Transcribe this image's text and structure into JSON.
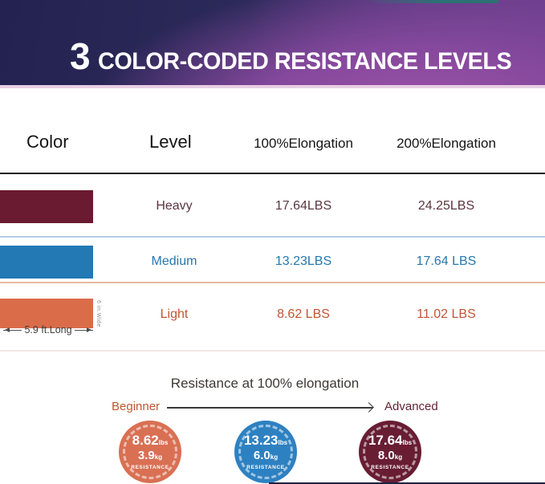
{
  "banner": {
    "number": "3",
    "title": "COLOR-CODED RESISTANCE LEVELS",
    "background_colors": [
      "#232250",
      "#5e3a83",
      "#a055a8"
    ],
    "underline_color": "#e8cfe4",
    "accent_sliver_color": "#2c7173"
  },
  "table": {
    "headers": {
      "color": "Color",
      "level": "Level",
      "e100": "100%Elongation",
      "e200": "200%Elongation"
    },
    "rows": [
      {
        "level": "Heavy",
        "e100": "17.64LBS",
        "e200": "24.25LBS",
        "bar_color": "#6A1B31",
        "text_color": "#5a3640"
      },
      {
        "level": "Medium",
        "e100": "13.23LBS",
        "e200": "17.64 LBS",
        "bar_color": "#2379B4",
        "text_color": "#2478AE"
      },
      {
        "level": "Light",
        "e100": "8.62 LBS",
        "e200": "11.02 LBS",
        "bar_color": "#DA6C4A",
        "text_color": "#C25532"
      }
    ],
    "band_width_label": "6 in.Wide",
    "band_length_label": "5.9 ft.Long",
    "separator_colors": {
      "header": "#222226",
      "after_heavy": "#b5cee2",
      "after_medium": "#e7b9a2",
      "after_light": "#f1e7e3"
    }
  },
  "bottom": {
    "caption": "Resistance at 100% elongation",
    "left_label": "Beginner",
    "left_label_color": "#c05634",
    "right_label": "Advanced",
    "right_label_color": "#642335",
    "badges": [
      {
        "lbs": "8.62",
        "lbs_unit": "lbs",
        "kg": "3.9",
        "kg_unit": "kg",
        "word": "RESISTANCE",
        "color": "#D97053"
      },
      {
        "lbs": "13.23",
        "lbs_unit": "lbs",
        "kg": "6.0",
        "kg_unit": "kg",
        "word": "RESISTANCE",
        "color": "#2E81C1"
      },
      {
        "lbs": "17.64",
        "lbs_unit": "lbs",
        "kg": "8.0",
        "kg_unit": "kg",
        "word": "RESISTANCE",
        "color": "#681D33"
      }
    ]
  },
  "chart_data": {
    "type": "table",
    "title": "3 COLOR-CODED RESISTANCE LEVELS",
    "columns": [
      "Color",
      "Level",
      "100%Elongation",
      "200%Elongation"
    ],
    "rows": [
      [
        "Dark red band",
        "Heavy",
        "17.64LBS",
        "24.25LBS"
      ],
      [
        "Blue band",
        "Medium",
        "13.23LBS",
        "17.64 LBS"
      ],
      [
        "Orange band",
        "Light",
        "8.62 LBS",
        "11.02 LBS"
      ]
    ],
    "band_dimensions": {
      "length": "5.9 ft.Long",
      "width": "6 in.Wide"
    },
    "resistance_at_100_elongation": [
      {
        "level": "Light",
        "lbs": 8.62,
        "kg": 3.9
      },
      {
        "level": "Medium",
        "lbs": 13.23,
        "kg": 6.0
      },
      {
        "level": "Heavy",
        "lbs": 17.64,
        "kg": 8.0
      }
    ],
    "difficulty_scale": {
      "left": "Beginner",
      "right": "Advanced"
    }
  }
}
